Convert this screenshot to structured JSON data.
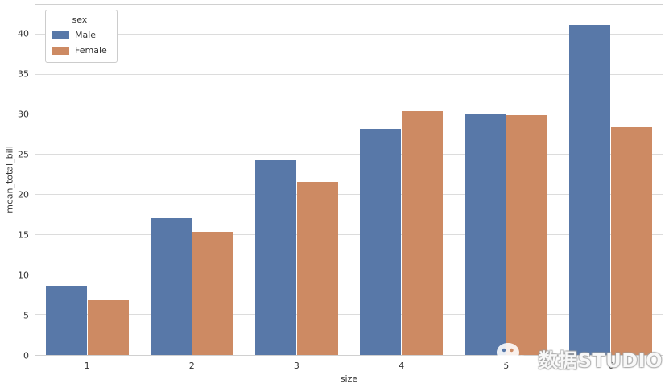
{
  "chart_data": {
    "type": "bar",
    "title": "",
    "xlabel": "size",
    "ylabel": "mean_total_bill",
    "categories": [
      "1",
      "2",
      "3",
      "4",
      "5",
      "6"
    ],
    "series": [
      {
        "name": "Male",
        "color": "#5878a8",
        "values": [
          8.6,
          17.1,
          24.3,
          28.2,
          30.1,
          41.2
        ]
      },
      {
        "name": "Female",
        "color": "#cd8a63",
        "values": [
          6.8,
          15.4,
          21.6,
          30.4,
          29.9,
          28.4
        ]
      }
    ],
    "ylim": [
      0,
      43.7
    ],
    "yticks": [
      0,
      5,
      10,
      15,
      20,
      25,
      30,
      35,
      40
    ],
    "grid": true,
    "grid_color": "#dcdcdc",
    "legend": {
      "title": "sex",
      "position": "upper left",
      "entries": [
        "Male",
        "Female"
      ]
    }
  },
  "watermark": {
    "text": "数据STUDIO",
    "icon": "wechat-chat-bubbles"
  }
}
